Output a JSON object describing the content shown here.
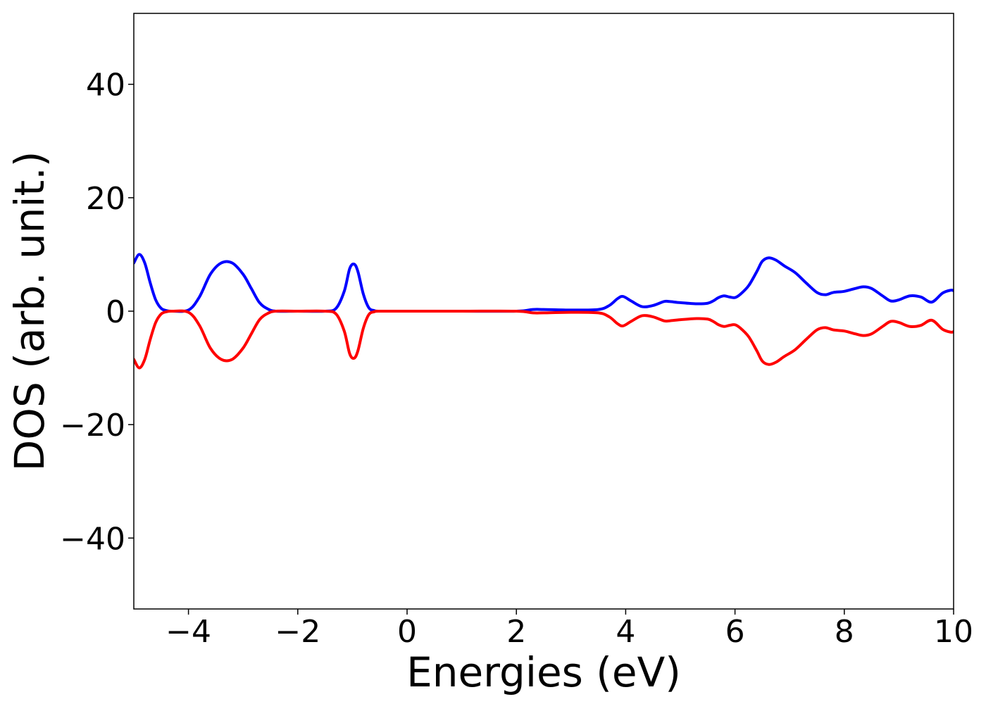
{
  "chart_data": {
    "type": "line",
    "title": "",
    "xlabel": "Energies (eV)",
    "ylabel": "DOS (arb. unit.)",
    "xlim": [
      -5,
      10
    ],
    "ylim": [
      -52.5,
      52.5
    ],
    "grid": false,
    "legend": "none",
    "x_ticks": [
      -4,
      -2,
      0,
      2,
      4,
      6,
      8,
      10
    ],
    "x_tick_labels": [
      "−4",
      "−2",
      "0",
      "2",
      "4",
      "6",
      "8",
      "10"
    ],
    "y_ticks": [
      -40,
      -20,
      0,
      20,
      40
    ],
    "y_tick_labels": [
      "−40",
      "−20",
      "0",
      "20",
      "40"
    ],
    "series": [
      {
        "color": "#0000ff",
        "x": [
          -5.0,
          -4.9,
          -4.8,
          -4.7,
          -4.6,
          -4.5,
          -4.4,
          -4.3,
          -4.0,
          -3.8,
          -3.6,
          -3.4,
          -3.2,
          -3.0,
          -2.85,
          -2.7,
          -2.55,
          -2.4,
          -2.0,
          -1.5,
          -1.3,
          -1.15,
          -1.05,
          -0.97,
          -0.9,
          -0.8,
          -0.7,
          -0.6,
          -0.5,
          0.0,
          1.0,
          2.0,
          2.3,
          2.5,
          3.0,
          3.5,
          3.7,
          3.85,
          3.95,
          4.1,
          4.3,
          4.5,
          4.7,
          4.8,
          5.0,
          5.3,
          5.5,
          5.6,
          5.7,
          5.8,
          5.9,
          6.0,
          6.1,
          6.25,
          6.4,
          6.5,
          6.62,
          6.75,
          6.9,
          7.1,
          7.3,
          7.5,
          7.65,
          7.8,
          8.0,
          8.2,
          8.35,
          8.5,
          8.7,
          8.85,
          9.0,
          9.2,
          9.4,
          9.6,
          9.8,
          9.95,
          10.0
        ],
        "values": [
          8.5,
          10.0,
          8.5,
          5.0,
          2.0,
          0.5,
          0.1,
          0.0,
          0.2,
          2.5,
          6.5,
          8.5,
          8.5,
          6.5,
          4.0,
          1.5,
          0.4,
          0.0,
          0.0,
          0.0,
          0.5,
          3.5,
          7.5,
          8.3,
          7.0,
          3.0,
          0.6,
          0.1,
          0.0,
          0.0,
          0.0,
          0.0,
          0.3,
          0.3,
          0.2,
          0.3,
          1.0,
          2.2,
          2.6,
          1.8,
          0.8,
          1.0,
          1.7,
          1.7,
          1.5,
          1.3,
          1.4,
          1.8,
          2.4,
          2.7,
          2.5,
          2.4,
          3.0,
          4.5,
          7.0,
          8.8,
          9.4,
          9.0,
          8.0,
          6.8,
          5.0,
          3.3,
          2.9,
          3.3,
          3.5,
          4.0,
          4.3,
          4.0,
          2.7,
          1.8,
          2.0,
          2.7,
          2.5,
          1.6,
          3.2,
          3.7,
          3.6
        ]
      },
      {
        "color": "#ff0000",
        "x": [
          -5.0,
          -4.9,
          -4.8,
          -4.7,
          -4.6,
          -4.5,
          -4.4,
          -4.3,
          -4.0,
          -3.8,
          -3.6,
          -3.4,
          -3.2,
          -3.0,
          -2.85,
          -2.7,
          -2.55,
          -2.4,
          -2.0,
          -1.5,
          -1.3,
          -1.15,
          -1.05,
          -0.97,
          -0.9,
          -0.8,
          -0.7,
          -0.6,
          -0.5,
          0.0,
          1.0,
          2.0,
          2.3,
          2.5,
          3.0,
          3.5,
          3.7,
          3.85,
          3.95,
          4.1,
          4.3,
          4.5,
          4.7,
          4.8,
          5.0,
          5.3,
          5.5,
          5.6,
          5.7,
          5.8,
          5.9,
          6.0,
          6.1,
          6.25,
          6.4,
          6.5,
          6.62,
          6.75,
          6.9,
          7.1,
          7.3,
          7.5,
          7.65,
          7.8,
          8.0,
          8.2,
          8.35,
          8.5,
          8.7,
          8.85,
          9.0,
          9.2,
          9.4,
          9.6,
          9.8,
          9.95,
          10.0
        ],
        "values": [
          -8.5,
          -10.0,
          -8.5,
          -5.0,
          -2.0,
          -0.5,
          -0.1,
          0.0,
          -0.2,
          -2.5,
          -6.5,
          -8.5,
          -8.5,
          -6.5,
          -4.0,
          -1.5,
          -0.4,
          0.0,
          0.0,
          0.0,
          -0.5,
          -3.5,
          -7.5,
          -8.3,
          -7.0,
          -3.0,
          -0.6,
          -0.1,
          0.0,
          0.0,
          0.0,
          0.0,
          -0.3,
          -0.3,
          -0.2,
          -0.3,
          -1.0,
          -2.2,
          -2.6,
          -1.8,
          -0.8,
          -1.0,
          -1.7,
          -1.7,
          -1.5,
          -1.3,
          -1.4,
          -1.8,
          -2.4,
          -2.7,
          -2.5,
          -2.4,
          -3.0,
          -4.5,
          -7.0,
          -8.8,
          -9.4,
          -9.0,
          -8.0,
          -6.8,
          -5.0,
          -3.3,
          -2.9,
          -3.3,
          -3.5,
          -4.0,
          -4.3,
          -4.0,
          -2.7,
          -1.8,
          -2.0,
          -2.7,
          -2.5,
          -1.6,
          -3.2,
          -3.7,
          -3.6
        ]
      }
    ]
  }
}
